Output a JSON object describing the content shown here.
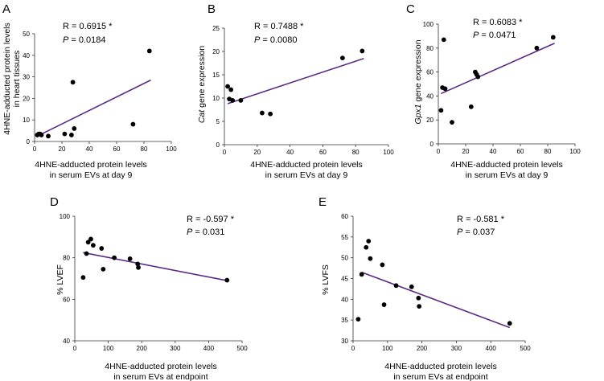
{
  "chart_data": [
    {
      "panel": "A",
      "type": "scatter",
      "xlim": [
        0,
        100
      ],
      "ylim": [
        0,
        50
      ],
      "xticks": [
        0,
        20,
        40,
        60,
        80,
        100
      ],
      "yticks": [
        0,
        10,
        20,
        30,
        40,
        50
      ],
      "ylabel_lines": [
        "4HNE-adducted protein levels",
        "in heart tissues"
      ],
      "xlabel_lines": [
        "4HNE-adducted protein levels",
        "in serum EVs at day 9"
      ],
      "r_text": "R = 0.6915 *",
      "p_label": "P",
      "p_value": " = 0.0184",
      "points": [
        [
          2,
          3
        ],
        [
          3,
          3.5
        ],
        [
          4,
          3.5
        ],
        [
          5,
          3
        ],
        [
          10,
          2.5
        ],
        [
          22,
          3.5
        ],
        [
          27,
          3
        ],
        [
          28,
          27.5
        ],
        [
          29,
          6
        ],
        [
          72,
          8
        ],
        [
          84,
          42
        ]
      ],
      "trend": [
        [
          2,
          2.5
        ],
        [
          85,
          28.5
        ]
      ]
    },
    {
      "panel": "B",
      "type": "scatter",
      "xlim": [
        0,
        100
      ],
      "ylim": [
        0,
        25
      ],
      "xticks": [
        0,
        20,
        40,
        60,
        80,
        100
      ],
      "yticks": [
        0,
        5,
        10,
        15,
        20,
        25
      ],
      "ylabel_italic": "Cat",
      "ylabel_rest": " gene expression",
      "xlabel_lines": [
        "4HNE-adducted protein levels",
        "in serum EVs at day 9"
      ],
      "r_text": "R = 0.7488 *",
      "p_label": "P",
      "p_value": " = 0.0080",
      "points": [
        [
          2,
          12.5
        ],
        [
          3,
          9.8
        ],
        [
          4,
          11.8
        ],
        [
          5,
          9.5
        ],
        [
          10,
          9.5
        ],
        [
          23,
          6.8
        ],
        [
          28,
          6.6
        ],
        [
          72,
          18.6
        ],
        [
          84,
          20.1
        ]
      ],
      "trend": [
        [
          2,
          8.8
        ],
        [
          85,
          18.5
        ]
      ]
    },
    {
      "panel": "C",
      "type": "scatter",
      "xlim": [
        0,
        100
      ],
      "ylim": [
        0,
        100
      ],
      "xticks": [
        0,
        20,
        40,
        60,
        80,
        100
      ],
      "yticks": [
        0,
        20,
        40,
        60,
        80,
        100
      ],
      "ylabel_italic": "Gpx1",
      "ylabel_rest": " gene expression",
      "xlabel_lines": [
        "4HNE-adducted protein levels",
        "in serum EVs at day 9"
      ],
      "r_text": "R = 0.6083 *",
      "p_label": "P",
      "p_value": " = 0.0471",
      "points": [
        [
          2,
          28
        ],
        [
          3,
          47
        ],
        [
          4,
          87
        ],
        [
          5,
          46
        ],
        [
          10,
          18
        ],
        [
          24,
          31
        ],
        [
          27,
          60
        ],
        [
          28,
          58
        ],
        [
          29,
          56
        ],
        [
          72,
          80
        ],
        [
          84,
          89
        ]
      ],
      "trend": [
        [
          2,
          42
        ],
        [
          85,
          84
        ]
      ]
    },
    {
      "panel": "D",
      "type": "scatter",
      "xlim": [
        0,
        500
      ],
      "ylim": [
        40,
        100
      ],
      "xticks": [
        0,
        100,
        200,
        300,
        400,
        500
      ],
      "yticks": [
        40,
        60,
        80,
        100
      ],
      "ylabel": "% LVEF",
      "xlabel_lines": [
        "4HNE-adducted protein levels",
        "in serum EVs at endpoint"
      ],
      "r_text": "R = -0.597 *",
      "p_label": "P",
      "p_value": " = 0.031",
      "points": [
        [
          25,
          70.5
        ],
        [
          35,
          82
        ],
        [
          40,
          87.5
        ],
        [
          48,
          89
        ],
        [
          55,
          86
        ],
        [
          80,
          84.5
        ],
        [
          85,
          74.5
        ],
        [
          118,
          80
        ],
        [
          165,
          79.5
        ],
        [
          188,
          77
        ],
        [
          190,
          75.3
        ],
        [
          455,
          69.2
        ]
      ],
      "trend": [
        [
          25,
          82.5
        ],
        [
          455,
          69
        ]
      ]
    },
    {
      "panel": "E",
      "type": "scatter",
      "xlim": [
        0,
        500
      ],
      "ylim": [
        30,
        60
      ],
      "xticks": [
        0,
        100,
        200,
        300,
        400,
        500
      ],
      "yticks": [
        30,
        35,
        40,
        45,
        50,
        55,
        60
      ],
      "ylabel": "% LVFS",
      "xlabel_lines": [
        "4HNE-adducted protein levels",
        "in serum EVs at endpoint"
      ],
      "r_text": "R = -0.581 *",
      "p_label": "P",
      "p_value": " = 0.037",
      "points": [
        [
          15,
          35.2
        ],
        [
          25,
          46
        ],
        [
          38,
          52.5
        ],
        [
          45,
          54
        ],
        [
          50,
          49.8
        ],
        [
          85,
          48.3
        ],
        [
          90,
          38.7
        ],
        [
          125,
          43.3
        ],
        [
          170,
          43
        ],
        [
          190,
          40.3
        ],
        [
          192,
          38.3
        ],
        [
          455,
          34.2
        ]
      ],
      "trend": [
        [
          25,
          46.5
        ],
        [
          455,
          33.2
        ]
      ]
    }
  ],
  "colors": {
    "trend": "#5b2a86",
    "point": "#000000",
    "axis": "#333333"
  }
}
